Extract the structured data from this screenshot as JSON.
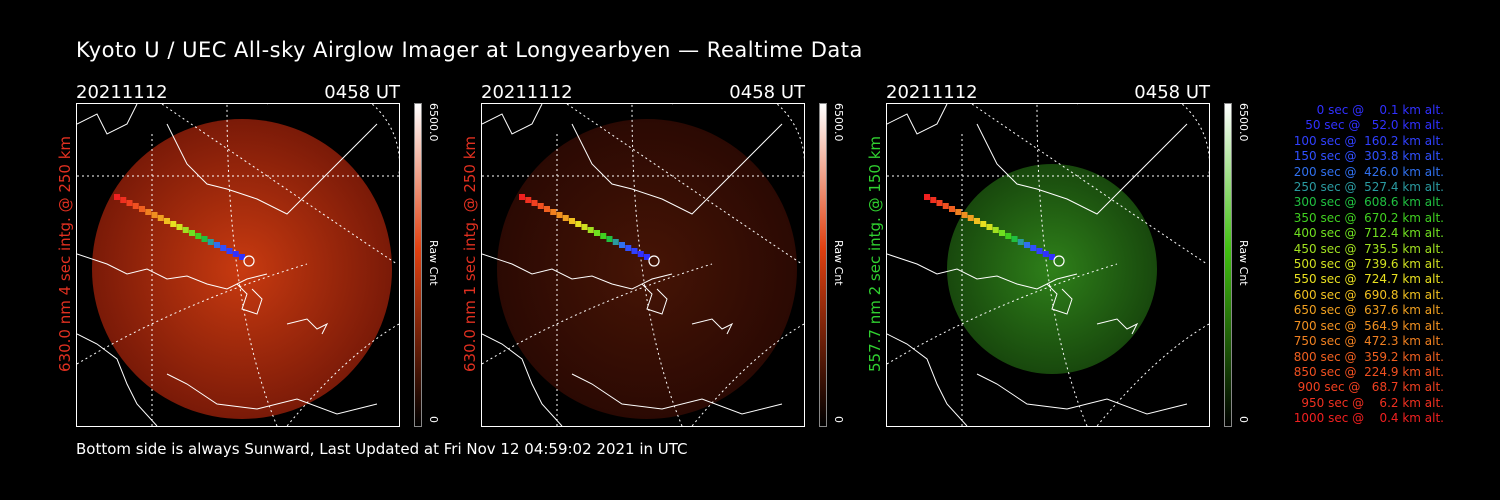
{
  "title": "Kyoto U / UEC All-sky Airglow Imager at Longyearbyen — Realtime Data",
  "panels": [
    {
      "date": "20211112",
      "time": "0458 UT",
      "label": "630.0 nm 4 sec intg. @ 250 km",
      "label_color": "#e03020",
      "cbar_max": "6500.0",
      "cbar_min": "0",
      "cbar_unit": "Raw Cnt",
      "cbar_color": "#e04010",
      "brightness": 1.0,
      "hue": "red"
    },
    {
      "date": "20211112",
      "time": "0458 UT",
      "label": "630.0 nm 1 sec intg. @ 250 km",
      "label_color": "#e03020",
      "cbar_max": "6500.0",
      "cbar_min": "0",
      "cbar_unit": "Raw Cnt",
      "cbar_color": "#e04010",
      "brightness": 0.35,
      "hue": "red"
    },
    {
      "date": "20211112",
      "time": "0458 UT",
      "label": "557.7 nm 2 sec intg. @ 150 km",
      "label_color": "#30d030",
      "cbar_max": "6500.0",
      "cbar_min": "0",
      "cbar_unit": "Raw Cnt",
      "cbar_color": "#40c010",
      "brightness": 0.8,
      "hue": "green"
    }
  ],
  "legend": [
    {
      "text": "   0 sec @    0.1 km alt.",
      "color": "#3030ff"
    },
    {
      "text": "  50 sec @   52.0 km alt.",
      "color": "#3030ff"
    },
    {
      "text": " 100 sec @  160.2 km alt.",
      "color": "#3040ff"
    },
    {
      "text": " 150 sec @  303.8 km alt.",
      "color": "#3050ff"
    },
    {
      "text": " 200 sec @  426.0 km alt.",
      "color": "#3070ee"
    },
    {
      "text": " 250 sec @  527.4 km alt.",
      "color": "#2a9aa0"
    },
    {
      "text": " 300 sec @  608.6 km alt.",
      "color": "#20c040"
    },
    {
      "text": " 350 sec @  670.2 km alt.",
      "color": "#40d020"
    },
    {
      "text": " 400 sec @  712.4 km alt.",
      "color": "#70e020"
    },
    {
      "text": " 450 sec @  735.5 km alt.",
      "color": "#a0e020"
    },
    {
      "text": " 500 sec @  739.6 km alt.",
      "color": "#d0e020"
    },
    {
      "text": " 550 sec @  724.7 km alt.",
      "color": "#e8e020"
    },
    {
      "text": " 600 sec @  690.8 km alt.",
      "color": "#f0c020"
    },
    {
      "text": " 650 sec @  637.6 km alt.",
      "color": "#f0a020"
    },
    {
      "text": " 700 sec @  564.9 km alt.",
      "color": "#f09020"
    },
    {
      "text": " 750 sec @  472.3 km alt.",
      "color": "#f08020"
    },
    {
      "text": " 800 sec @  359.2 km alt.",
      "color": "#f06020"
    },
    {
      "text": " 850 sec @  224.9 km alt.",
      "color": "#f05020"
    },
    {
      "text": " 900 sec @   68.7 km alt.",
      "color": "#f04020"
    },
    {
      "text": " 950 sec @    6.2 km alt.",
      "color": "#f03020"
    },
    {
      "text": "1000 sec @    0.4 km alt.",
      "color": "#f02020"
    }
  ],
  "footer": "Bottom side is always Sunward, Last Updated at Fri Nov 12 04:59:02 2021 in UTC"
}
